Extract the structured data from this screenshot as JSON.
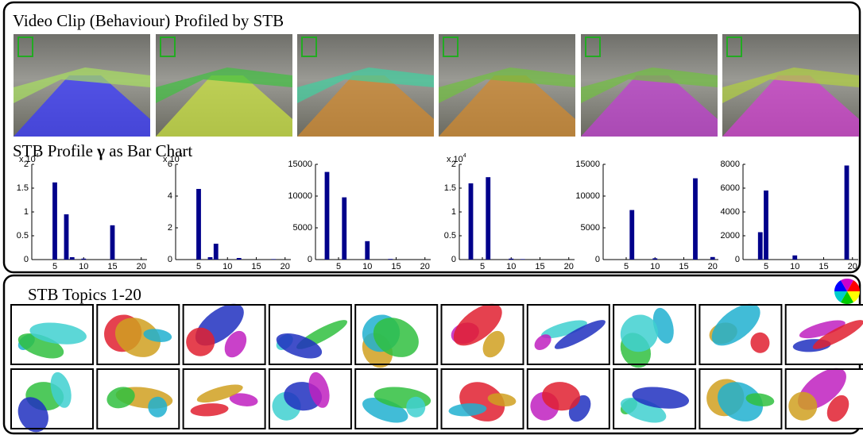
{
  "figure": {
    "section_video": "Video Clip (Behaviour) Profiled by STB",
    "section_profile": {
      "text": "STB Profile ",
      "symbol": "γ",
      "suffix": " as Bar Chart"
    },
    "section_topics": "STB Topics 1-20"
  },
  "chart_data": [
    {
      "type": "bar",
      "x": [
        5,
        7,
        8,
        10,
        15
      ],
      "values": [
        1.62,
        0.95,
        0.05,
        0.02,
        0.72
      ],
      "color": "#00008b",
      "xlim": [
        1,
        21
      ],
      "xticks": [
        5,
        10,
        15,
        20
      ],
      "ylim": [
        0,
        2
      ],
      "yticks": [
        0,
        0.5,
        1,
        1.5,
        2
      ],
      "y_multiplier": {
        "base": "x 10",
        "exponent": "4"
      }
    },
    {
      "type": "bar",
      "x": [
        5,
        7,
        8,
        12,
        18
      ],
      "values": [
        4.45,
        0.15,
        1.0,
        0.1,
        0.03
      ],
      "color": "#00008b",
      "xlim": [
        1,
        21
      ],
      "xticks": [
        5,
        10,
        15,
        20
      ],
      "ylim": [
        0,
        6
      ],
      "yticks": [
        0,
        2,
        4,
        6
      ],
      "y_multiplier": {
        "base": "x 10",
        "exponent": "4"
      }
    },
    {
      "type": "bar",
      "x": [
        3,
        6,
        10,
        14
      ],
      "values": [
        13800,
        9800,
        2900,
        100
      ],
      "color": "#00008b",
      "xlim": [
        1,
        21
      ],
      "xticks": [
        5,
        10,
        15,
        20
      ],
      "ylim": [
        0,
        15000
      ],
      "yticks": [
        0,
        5000,
        10000,
        15000
      ]
    },
    {
      "type": "bar",
      "x": [
        3,
        6,
        10,
        12
      ],
      "values": [
        1.6,
        1.73,
        0.02,
        0.01
      ],
      "color": "#00008b",
      "xlim": [
        1,
        21
      ],
      "xticks": [
        5,
        10,
        15,
        20
      ],
      "ylim": [
        0,
        2
      ],
      "yticks": [
        0,
        0.5,
        1,
        1.5,
        2
      ],
      "y_multiplier": {
        "base": "x 10",
        "exponent": "4"
      }
    },
    {
      "type": "bar",
      "x": [
        6,
        10,
        17,
        20
      ],
      "values": [
        7800,
        200,
        12800,
        400
      ],
      "color": "#00008b",
      "xlim": [
        1,
        21
      ],
      "xticks": [
        5,
        10,
        15,
        20
      ],
      "ylim": [
        0,
        15000
      ],
      "yticks": [
        0,
        5000,
        10000,
        15000
      ]
    },
    {
      "type": "bar",
      "x": [
        4,
        5,
        10,
        19
      ],
      "values": [
        2300,
        5800,
        350,
        7900
      ],
      "color": "#00008b",
      "xlim": [
        1,
        21
      ],
      "xticks": [
        5,
        10,
        15,
        20
      ],
      "ylim": [
        0,
        8000
      ],
      "yticks": [
        0,
        2000,
        4000,
        6000,
        8000
      ]
    }
  ]
}
